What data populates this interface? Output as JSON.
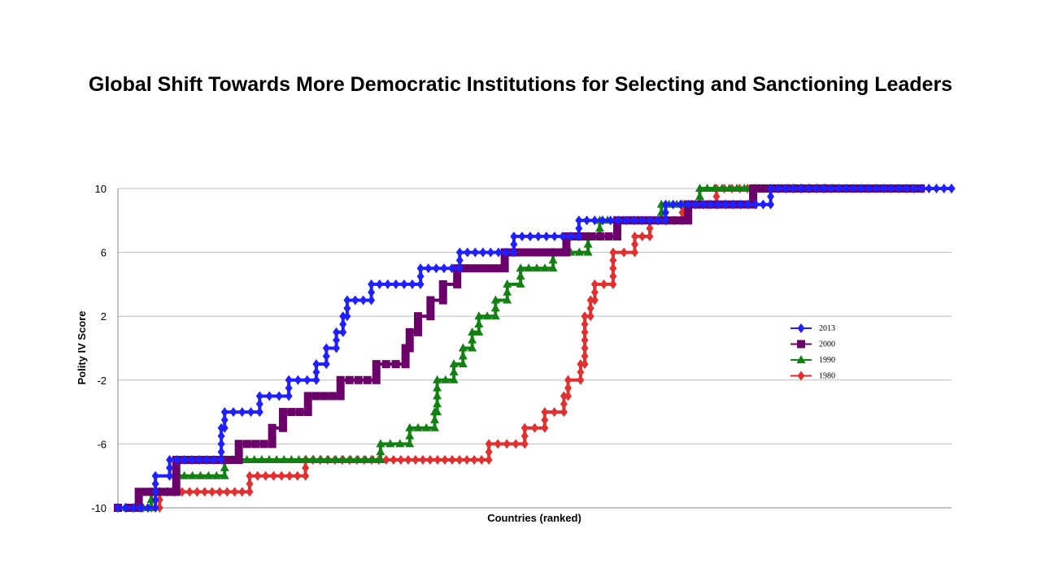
{
  "chart_data": {
    "type": "line",
    "title": "Global Shift Towards More Democratic Institutions for Selecting and Sanctioning Leaders",
    "xlabel": "Countries (ranked)",
    "ylabel": "Polity IV Score",
    "ylim": [
      -10,
      10
    ],
    "xlim": [
      0,
      1
    ],
    "yticks": [
      "10",
      "6",
      "2",
      "-2",
      "-6",
      "-10"
    ],
    "grid": true,
    "legend_position": "right",
    "series": [
      {
        "name": "2013",
        "color": "#1f1fff",
        "marker": "diamond",
        "steps": [
          [
            0,
            -10
          ],
          [
            0.045,
            -8
          ],
          [
            0.062,
            -7
          ],
          [
            0.124,
            -5
          ],
          [
            0.128,
            -4
          ],
          [
            0.17,
            -3
          ],
          [
            0.205,
            -2
          ],
          [
            0.238,
            -1
          ],
          [
            0.25,
            0
          ],
          [
            0.262,
            1
          ],
          [
            0.27,
            2
          ],
          [
            0.275,
            3
          ],
          [
            0.304,
            4
          ],
          [
            0.363,
            5
          ],
          [
            0.41,
            6
          ],
          [
            0.475,
            7
          ],
          [
            0.553,
            8
          ],
          [
            0.657,
            9
          ],
          [
            0.783,
            10
          ],
          [
            1.0,
            10
          ]
        ]
      },
      {
        "name": "2000",
        "color": "#6b006b",
        "marker": "square",
        "steps": [
          [
            0,
            -10
          ],
          [
            0.025,
            -9
          ],
          [
            0.07,
            -7
          ],
          [
            0.145,
            -6
          ],
          [
            0.185,
            -5
          ],
          [
            0.198,
            -4
          ],
          [
            0.228,
            -3
          ],
          [
            0.267,
            -2
          ],
          [
            0.31,
            -1
          ],
          [
            0.345,
            0
          ],
          [
            0.35,
            1
          ],
          [
            0.36,
            2
          ],
          [
            0.375,
            3
          ],
          [
            0.39,
            4
          ],
          [
            0.407,
            5
          ],
          [
            0.464,
            6
          ],
          [
            0.538,
            7
          ],
          [
            0.599,
            8
          ],
          [
            0.684,
            9
          ],
          [
            0.762,
            10
          ],
          [
            0.963,
            10
          ]
        ]
      },
      {
        "name": "1990",
        "color": "#138013",
        "marker": "triangle",
        "steps": [
          [
            0,
            -10
          ],
          [
            0.04,
            -9
          ],
          [
            0.07,
            -8
          ],
          [
            0.128,
            -7
          ],
          [
            0.315,
            -6
          ],
          [
            0.35,
            -5
          ],
          [
            0.38,
            -4
          ],
          [
            0.383,
            -2
          ],
          [
            0.403,
            -1
          ],
          [
            0.414,
            0
          ],
          [
            0.425,
            1
          ],
          [
            0.433,
            2
          ],
          [
            0.453,
            3
          ],
          [
            0.467,
            4
          ],
          [
            0.483,
            5
          ],
          [
            0.522,
            6
          ],
          [
            0.564,
            7
          ],
          [
            0.578,
            8
          ],
          [
            0.652,
            9
          ],
          [
            0.698,
            10
          ],
          [
            0.858,
            10
          ]
        ]
      },
      {
        "name": "1980",
        "color": "#e03030",
        "marker": "diamond",
        "steps": [
          [
            0,
            -10
          ],
          [
            0.05,
            -9
          ],
          [
            0.158,
            -8
          ],
          [
            0.225,
            -7
          ],
          [
            0.445,
            -6
          ],
          [
            0.488,
            -5
          ],
          [
            0.512,
            -4
          ],
          [
            0.535,
            -3
          ],
          [
            0.54,
            -2
          ],
          [
            0.555,
            -1
          ],
          [
            0.56,
            2
          ],
          [
            0.567,
            3
          ],
          [
            0.572,
            4
          ],
          [
            0.594,
            6
          ],
          [
            0.62,
            7
          ],
          [
            0.638,
            8
          ],
          [
            0.677,
            9
          ],
          [
            0.718,
            10
          ],
          [
            0.848,
            10
          ]
        ]
      }
    ]
  }
}
